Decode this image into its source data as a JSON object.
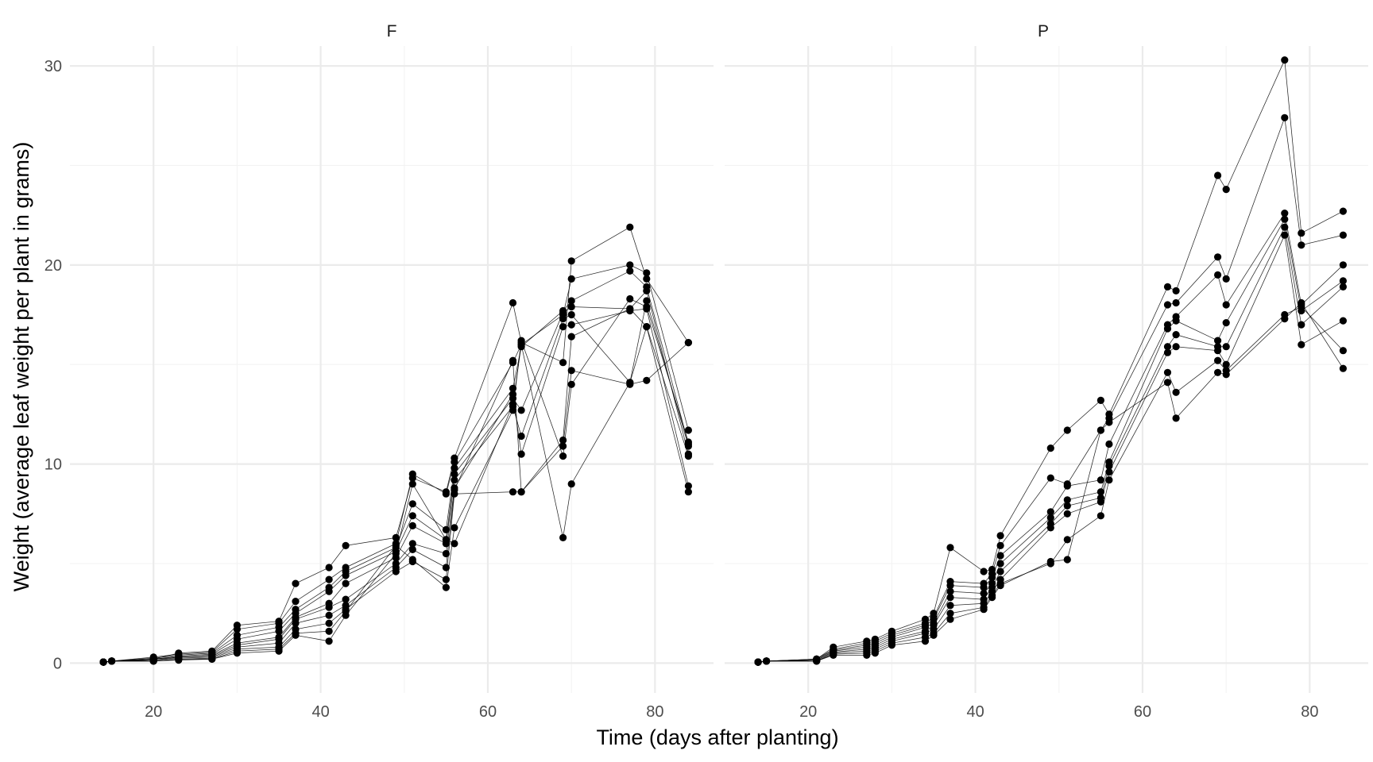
{
  "chart_data": {
    "type": "line",
    "xlabel": "Time (days after planting)",
    "ylabel": "Weight (average leaf weight per plant in grams)",
    "xlim": [
      10,
      87
    ],
    "ylim": [
      -1.5,
      31
    ],
    "x_ticks": [
      20,
      40,
      60,
      80
    ],
    "y_ticks": [
      0,
      10,
      20,
      30
    ],
    "grid": true,
    "legend": "none",
    "panels": [
      {
        "label": "F",
        "x": [
          14,
          15,
          20,
          23,
          27,
          30,
          35,
          37,
          41,
          43,
          49,
          51,
          55,
          56,
          63,
          64,
          69,
          70,
          77,
          79,
          84
        ],
        "series": [
          {
            "values": [
              0.05,
              0.1,
              0.2,
              0.5,
              0.6,
              1.9,
              2.1,
              4.0,
              4.8,
              5.9,
              6.3,
              9.3,
              8.6,
              10.3,
              18.1,
              16.1,
              15.1,
              20.2,
              21.9,
              19.3,
              16.1
            ]
          },
          {
            "values": [
              0.05,
              0.1,
              0.3,
              0.45,
              0.55,
              1.7,
              2.0,
              3.1,
              4.2,
              4.8,
              6.0,
              9.5,
              8.5,
              10.1,
              15.1,
              16.0,
              17.5,
              19.3,
              20.0,
              19.6,
              11.7
            ]
          },
          {
            "values": [
              0.05,
              0.1,
              0.25,
              0.4,
              0.5,
              1.4,
              1.8,
              2.7,
              3.8,
              4.6,
              5.8,
              8.0,
              6.7,
              9.8,
              13.8,
              15.9,
              17.7,
              18.2,
              19.7,
              18.9,
              11.0
            ]
          },
          {
            "values": [
              0.05,
              0.1,
              0.2,
              0.35,
              0.45,
              1.2,
              1.6,
              2.5,
              3.6,
              4.4,
              5.6,
              7.4,
              6.2,
              9.5,
              13.3,
              12.7,
              17.6,
              17.9,
              17.8,
              18.7,
              10.5
            ]
          },
          {
            "values": [
              0.05,
              0.1,
              0.2,
              0.3,
              0.4,
              1.0,
              1.3,
              2.3,
              3.0,
              4.0,
              5.3,
              6.9,
              6.0,
              9.2,
              12.9,
              11.4,
              17.3,
              17.5,
              14.1,
              18.2,
              10.9
            ]
          },
          {
            "values": [
              0.05,
              0.1,
              0.15,
              0.3,
              0.35,
              0.9,
              1.2,
              2.2,
              2.8,
              3.2,
              5.0,
              6.0,
              5.5,
              8.8,
              13.5,
              10.5,
              16.9,
              17.0,
              17.7,
              17.8,
              8.9
            ]
          },
          {
            "values": [
              0.05,
              0.1,
              0.15,
              0.25,
              0.3,
              0.8,
              1.0,
              2.0,
              2.4,
              2.9,
              4.8,
              5.7,
              4.8,
              8.7,
              15.2,
              8.6,
              11.2,
              16.4,
              17.8,
              16.9,
              8.6
            ]
          },
          {
            "values": [
              0.05,
              0.1,
              0.1,
              0.2,
              0.25,
              0.7,
              0.8,
              1.7,
              2.0,
              2.7,
              4.6,
              5.1,
              4.2,
              8.5,
              8.6,
              8.6,
              10.9,
              14.7,
              14.0,
              14.2,
              16.1
            ]
          },
          {
            "values": [
              0.05,
              0.1,
              0.1,
              0.2,
              0.2,
              0.6,
              0.7,
              1.5,
              1.6,
              2.6,
              5.9,
              5.2,
              3.8,
              6.8,
              12.7,
              16.2,
              10.4,
              14.0,
              18.3,
              17.9,
              11.1
            ]
          },
          {
            "values": [
              0.05,
              0.1,
              0.1,
              0.15,
              0.2,
              0.5,
              0.6,
              1.4,
              1.1,
              2.4,
              5.5,
              9.0,
              6.2,
              6.0,
              13.0,
              16.0,
              6.3,
              9.0,
              14.1,
              16.9,
              10.4
            ]
          }
        ]
      },
      {
        "label": "P",
        "x": [
          14,
          15,
          21,
          23,
          27,
          28,
          30,
          34,
          35,
          37,
          41,
          42,
          43,
          49,
          51,
          55,
          56,
          63,
          64,
          69,
          70,
          77,
          79,
          84
        ],
        "series": [
          {
            "values": [
              0.05,
              0.1,
              0.2,
              0.8,
              1.1,
              1.2,
              1.6,
              2.2,
              2.5,
              5.8,
              4.6,
              4.7,
              6.4,
              10.8,
              11.7,
              13.2,
              12.5,
              18.9,
              18.7,
              24.5,
              23.8,
              30.3,
              21.6,
              22.7
            ]
          },
          {
            "values": [
              0.05,
              0.1,
              0.2,
              0.7,
              1.0,
              1.1,
              1.5,
              2.0,
              2.3,
              4.1,
              4.0,
              4.5,
              5.9,
              9.3,
              9.0,
              11.7,
              12.3,
              18.0,
              18.1,
              20.4,
              19.3,
              27.4,
              21.0,
              21.5
            ]
          },
          {
            "values": [
              0.05,
              0.1,
              0.2,
              0.65,
              0.9,
              1.0,
              1.4,
              1.9,
              2.2,
              3.9,
              3.8,
              4.3,
              5.4,
              7.6,
              8.9,
              9.2,
              11.0,
              17.0,
              17.4,
              19.5,
              18.0,
              22.6,
              18.0,
              20.0
            ]
          },
          {
            "values": [
              0.05,
              0.1,
              0.15,
              0.6,
              0.8,
              0.9,
              1.3,
              1.8,
              2.0,
              3.6,
              3.5,
              4.0,
              5.0,
              7.3,
              8.2,
              8.6,
              10.1,
              16.8,
              17.2,
              16.2,
              17.1,
              22.3,
              17.7,
              19.2
            ]
          },
          {
            "values": [
              0.05,
              0.1,
              0.15,
              0.55,
              0.7,
              0.8,
              1.2,
              1.6,
              1.9,
              3.3,
              3.2,
              3.8,
              4.6,
              7.0,
              7.9,
              8.3,
              9.9,
              15.9,
              16.5,
              15.9,
              15.9,
              21.9,
              17.0,
              18.9
            ]
          },
          {
            "values": [
              0.05,
              0.1,
              0.1,
              0.5,
              0.6,
              0.7,
              1.1,
              1.5,
              1.7,
              2.9,
              3.0,
              3.6,
              4.2,
              6.8,
              7.5,
              8.1,
              9.6,
              15.6,
              15.9,
              15.7,
              15.0,
              21.5,
              16.0,
              17.2
            ]
          },
          {
            "values": [
              0.05,
              0.1,
              0.1,
              0.45,
              0.5,
              0.6,
              1.0,
              1.3,
              1.5,
              2.5,
              2.8,
              3.4,
              4.0,
              5.0,
              6.2,
              7.4,
              9.2,
              14.6,
              13.6,
              15.2,
              14.7,
              17.5,
              17.9,
              15.7
            ]
          },
          {
            "values": [
              0.05,
              0.1,
              0.1,
              0.4,
              0.4,
              0.5,
              0.9,
              1.1,
              1.4,
              2.2,
              2.7,
              3.3,
              3.9,
              5.1,
              5.2,
              11.7,
              12.1,
              14.1,
              12.3,
              14.6,
              14.5,
              17.3,
              18.1,
              14.8
            ]
          }
        ]
      }
    ]
  }
}
